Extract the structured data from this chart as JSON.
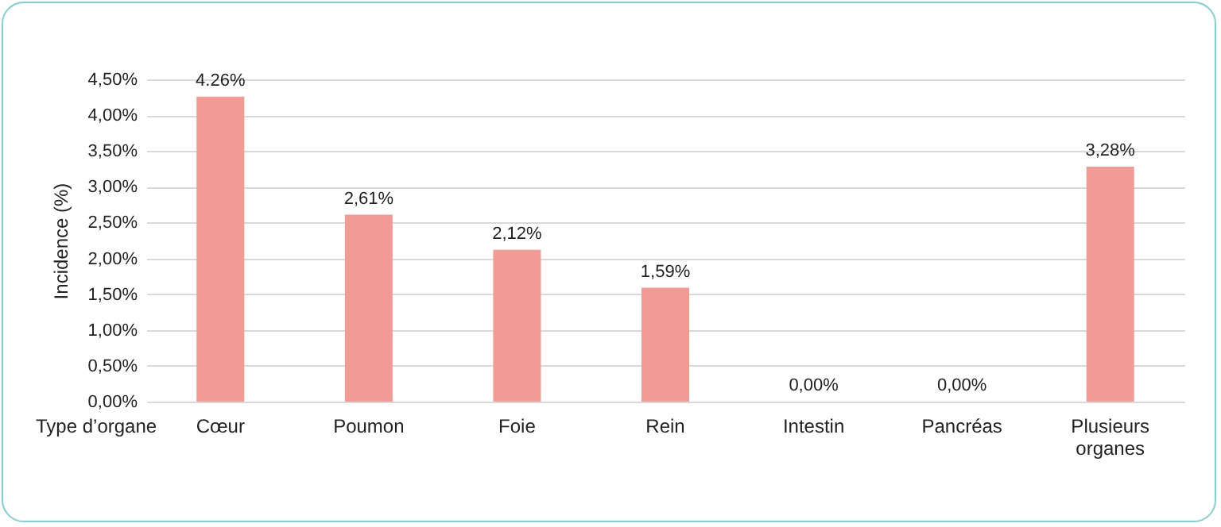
{
  "chart_data": {
    "type": "bar",
    "xlabel": "Type d’organe",
    "ylabel": "Incidence (%)",
    "categories": [
      "Cœur",
      "Poumon",
      "Foie",
      "Rein",
      "Intestin",
      "Pancréas",
      "Plusieurs organes"
    ],
    "values": [
      4.26,
      2.61,
      2.12,
      1.59,
      0,
      0,
      3.28
    ],
    "value_labels": [
      "4.26%",
      "2,61%",
      "2,12%",
      "1,59%",
      "0,00%",
      "0,00%",
      "3,28%"
    ],
    "color": "#f29b94",
    "ylim": [
      0,
      4.5
    ],
    "yticks": [
      {
        "value": 0,
        "label": "0,00%"
      },
      {
        "value": 0.5,
        "label": "0,50%"
      },
      {
        "value": 1,
        "label": "1,00%"
      },
      {
        "value": 1.5,
        "label": "1,50%"
      },
      {
        "value": 2,
        "label": "2,00%"
      },
      {
        "value": 2.5,
        "label": "2,50%"
      },
      {
        "value": 3,
        "label": "3,00%"
      },
      {
        "value": 3.5,
        "label": "3,50%"
      },
      {
        "value": 4,
        "label": "4,00%"
      },
      {
        "value": 4.5,
        "label": "4,50%"
      }
    ],
    "grid": "y"
  }
}
